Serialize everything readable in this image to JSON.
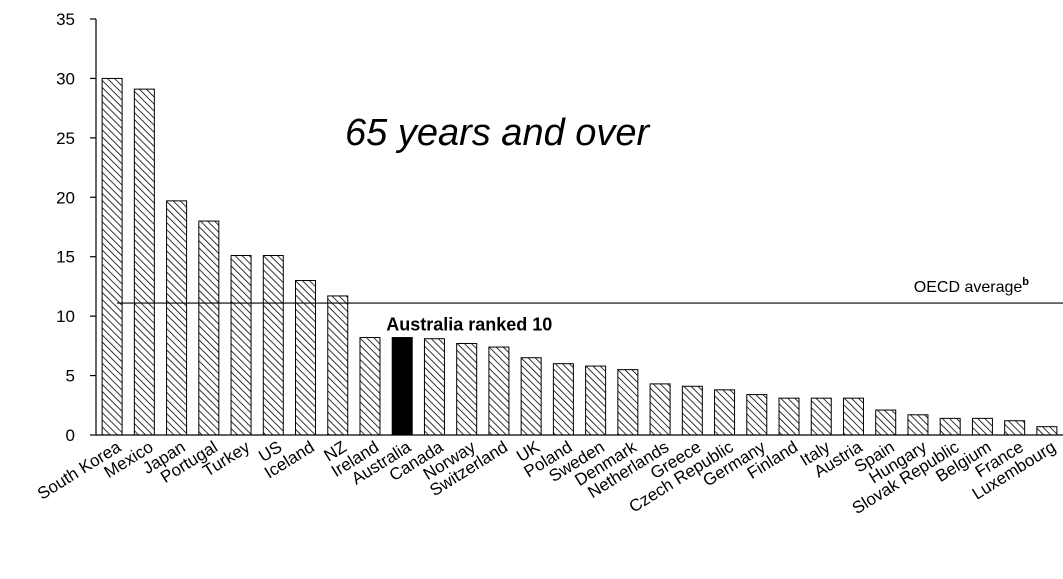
{
  "chart_data": {
    "type": "bar",
    "title": "65 years and over",
    "categories": [
      "South Korea",
      "Mexico",
      "Japan",
      "Portugal",
      "Turkey",
      "US",
      "Iceland",
      "NZ",
      "Ireland",
      "Australia",
      "Canada",
      "Norway",
      "Switzerland",
      "UK",
      "Poland",
      "Sweden",
      "Denmark",
      "Netherlands",
      "Greece",
      "Czech Republic",
      "Germany",
      "Finland",
      "Italy",
      "Austria",
      "Spain",
      "Hungary",
      "Slovak Republic",
      "Belgium",
      "France",
      "Luxembourg"
    ],
    "values": [
      30.0,
      29.1,
      19.7,
      18.0,
      15.1,
      15.1,
      13.0,
      11.7,
      8.2,
      8.2,
      8.1,
      7.7,
      7.4,
      6.5,
      6.0,
      5.8,
      5.5,
      4.3,
      4.1,
      3.8,
      3.4,
      3.1,
      3.1,
      3.1,
      2.1,
      1.7,
      1.4,
      1.4,
      1.2,
      0.7
    ],
    "highlight_index": 9,
    "ylim": [
      0,
      35
    ],
    "yticks": [
      0,
      5,
      10,
      15,
      20,
      25,
      30,
      35
    ],
    "reference_line": {
      "value": 11.1,
      "label": "OECD average",
      "superscript": "b"
    },
    "annotation": "Australia ranked 10",
    "colors": {
      "bar_fill_pattern": "diagonal-hatch",
      "highlight_fill": "#000000",
      "axis": "#000000"
    },
    "grid": false,
    "legend": "none"
  }
}
